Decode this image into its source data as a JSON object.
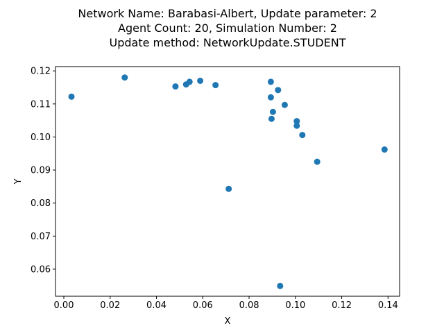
{
  "colors": {
    "marker": "#1f77b4",
    "axis": "#000000",
    "background": "#ffffff"
  },
  "chart_data": {
    "type": "scatter",
    "title_lines": [
      "Network Name: Barabasi-Albert, Update parameter: 2",
      "Agent Count: 20, Simulation Number: 2",
      "Update method: NetworkUpdate.STUDENT"
    ],
    "xlabel": "X",
    "ylabel": "Y",
    "xlim": [
      -0.0036,
      0.145
    ],
    "ylim": [
      0.0518,
      0.1213
    ],
    "xticks": [
      0.0,
      0.02,
      0.04,
      0.06,
      0.08,
      0.1,
      0.12,
      0.14
    ],
    "xtick_labels": [
      "0.00",
      "0.02",
      "0.04",
      "0.06",
      "0.08",
      "0.10",
      "0.12",
      "0.14"
    ],
    "yticks": [
      0.06,
      0.07,
      0.08,
      0.09,
      0.1,
      0.11,
      0.12
    ],
    "ytick_labels": [
      "0.06",
      "0.07",
      "0.08",
      "0.09",
      "0.10",
      "0.11",
      "0.12"
    ],
    "grid": false,
    "legend": false,
    "points": [
      {
        "x": 0.0033,
        "y": 0.1122
      },
      {
        "x": 0.0263,
        "y": 0.118
      },
      {
        "x": 0.0482,
        "y": 0.1153
      },
      {
        "x": 0.0528,
        "y": 0.1159
      },
      {
        "x": 0.0543,
        "y": 0.1167
      },
      {
        "x": 0.0589,
        "y": 0.117
      },
      {
        "x": 0.0655,
        "y": 0.1157
      },
      {
        "x": 0.0712,
        "y": 0.0843
      },
      {
        "x": 0.0894,
        "y": 0.1167
      },
      {
        "x": 0.0894,
        "y": 0.112
      },
      {
        "x": 0.0897,
        "y": 0.1055
      },
      {
        "x": 0.0903,
        "y": 0.1076
      },
      {
        "x": 0.0925,
        "y": 0.1142
      },
      {
        "x": 0.0934,
        "y": 0.0549
      },
      {
        "x": 0.0954,
        "y": 0.1097
      },
      {
        "x": 0.1006,
        "y": 0.1048
      },
      {
        "x": 0.1006,
        "y": 0.1034
      },
      {
        "x": 0.103,
        "y": 0.1006
      },
      {
        "x": 0.1094,
        "y": 0.0925
      },
      {
        "x": 0.1385,
        "y": 0.0962
      }
    ]
  }
}
